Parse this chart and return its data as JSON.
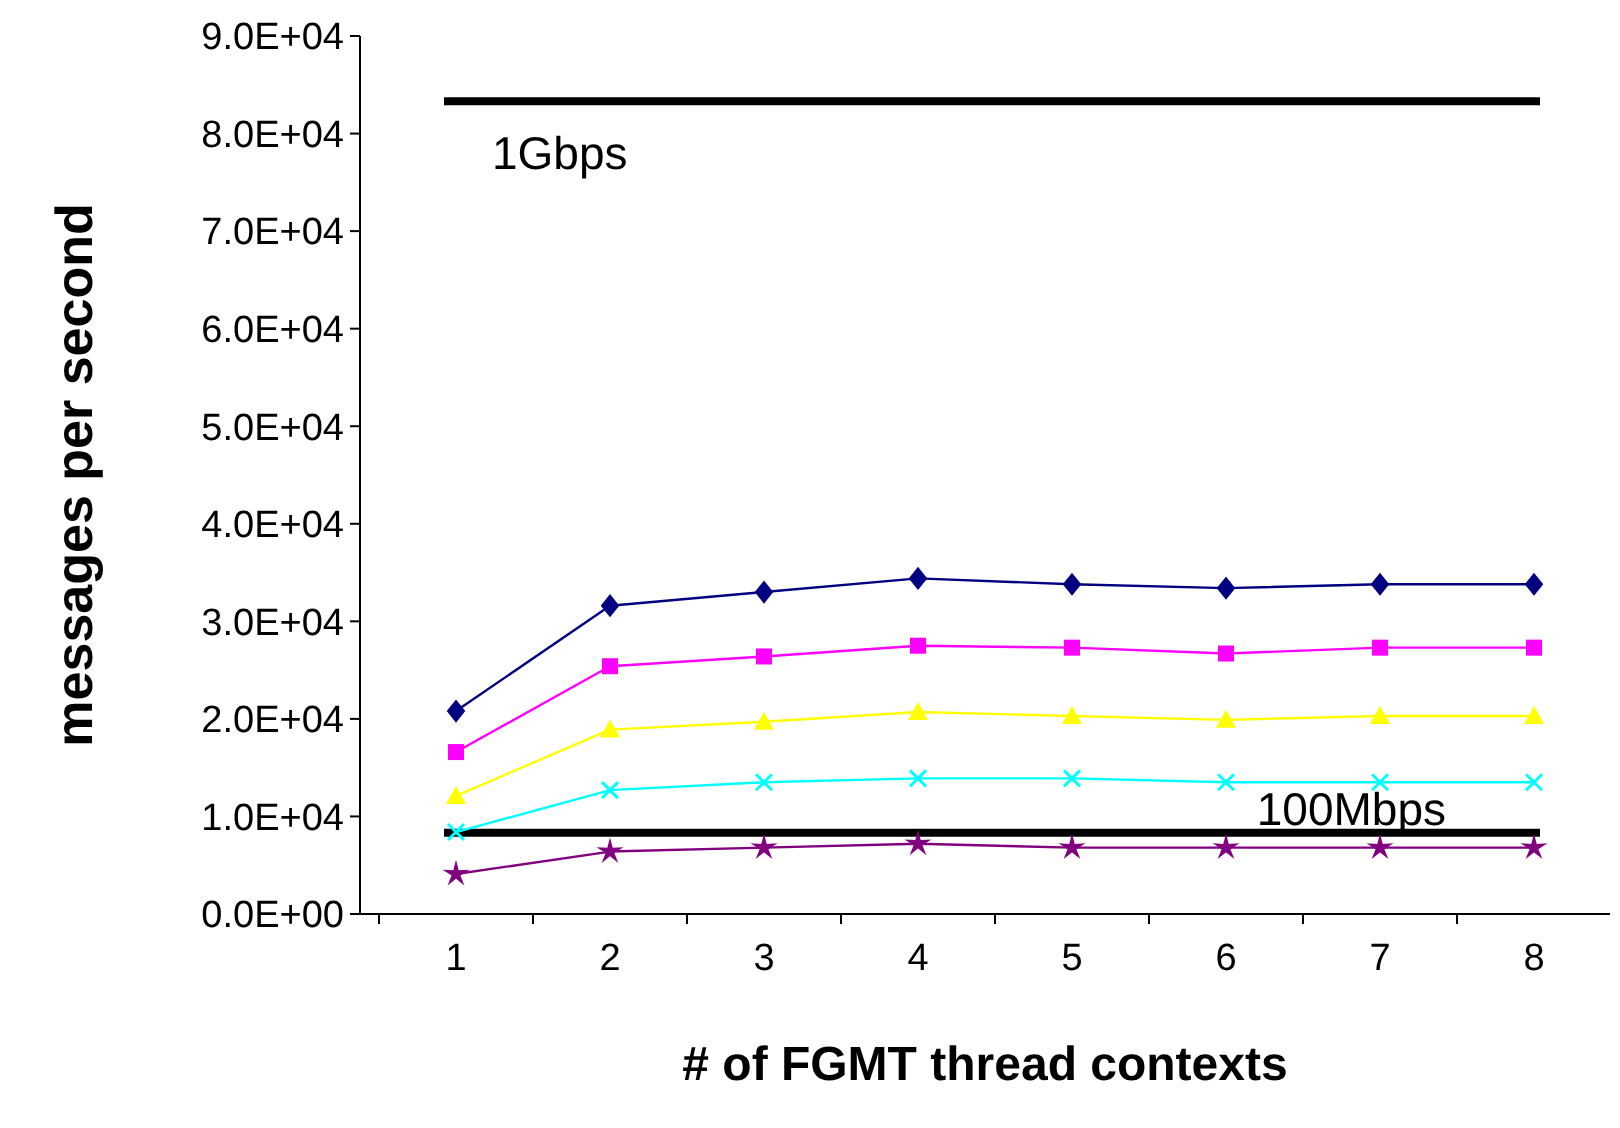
{
  "chart_data": {
    "type": "line",
    "xlabel": "# of FGMT thread contexts",
    "ylabel": "messages per second",
    "categories": [
      "1",
      "2",
      "3",
      "4",
      "5",
      "6",
      "7",
      "8"
    ],
    "series": [
      {
        "color": "#000080",
        "marker": "diamond",
        "values": [
          20800,
          31600,
          33000,
          34400,
          33800,
          33400,
          33800,
          33800
        ]
      },
      {
        "color": "#ff00ff",
        "marker": "square",
        "values": [
          16600,
          25400,
          26400,
          27500,
          27300,
          26700,
          27300,
          27300
        ]
      },
      {
        "color": "#ffff00",
        "marker": "triangle",
        "values": [
          12100,
          18900,
          19700,
          20700,
          20300,
          19900,
          20300,
          20300
        ]
      },
      {
        "color": "#00ffff",
        "marker": "cross",
        "values": [
          8400,
          12700,
          13500,
          13900,
          13900,
          13500,
          13500,
          13500
        ]
      },
      {
        "color": "#800080",
        "marker": "star",
        "values": [
          4100,
          6400,
          6800,
          7200,
          6800,
          6800,
          6800,
          6800
        ]
      }
    ],
    "ylim": [
      0,
      90000
    ],
    "yticks": [
      {
        "value": 0,
        "label": "0.0E+00"
      },
      {
        "value": 10000,
        "label": "1.0E+04"
      },
      {
        "value": 20000,
        "label": "2.0E+04"
      },
      {
        "value": 30000,
        "label": "3.0E+04"
      },
      {
        "value": 40000,
        "label": "4.0E+04"
      },
      {
        "value": 50000,
        "label": "5.0E+04"
      },
      {
        "value": 60000,
        "label": "6.0E+04"
      },
      {
        "value": 70000,
        "label": "7.0E+04"
      },
      {
        "value": 80000,
        "label": "8.0E+04"
      },
      {
        "value": 90000,
        "label": "9.0E+04"
      }
    ],
    "ref_lines": [
      {
        "axis": "y",
        "value": 83300,
        "label": "1Gbps",
        "color": "#000000"
      },
      {
        "axis": "y",
        "value": 8330,
        "label": "100Mbps",
        "color": "#000000"
      }
    ],
    "grid": false
  }
}
